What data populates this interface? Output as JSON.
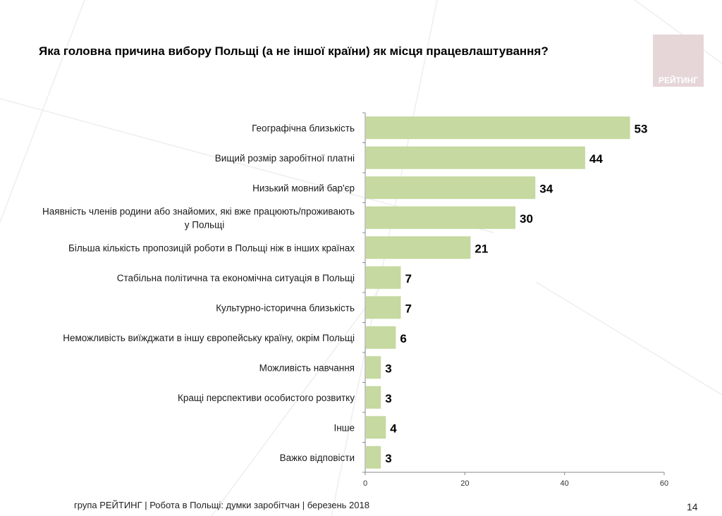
{
  "header": {
    "title": "Яка головна причина вибору Польщі (а не іншої країни) як місця працевлаштування?"
  },
  "logo": {
    "text": "РЕЙТИНГ"
  },
  "footer": {
    "text": "група РЕЙТИНГ  | Робота в Польщі: думки заробітчан  |  березень 2018",
    "page": "14"
  },
  "chart_data": {
    "type": "bar",
    "orientation": "horizontal",
    "categories": [
      [
        "Географічна близькість"
      ],
      [
        "Вищий розмір заробітної платні"
      ],
      [
        "Низький мовний бар'єр"
      ],
      [
        "Наявність членів родини або знайомих, які вже працюють/проживають",
        "у Польщі"
      ],
      [
        "Більша кількість пропозицій роботи в Польщі ніж в інших країнах"
      ],
      [
        "Стабільна політична та економічна ситуація в Польщі"
      ],
      [
        "Культурно-історична близькість"
      ],
      [
        "Неможливість виїжджати в іншу європейську країну, окрім Польщі"
      ],
      [
        "Можливість навчання"
      ],
      [
        "Кращі перспективи особистого розвитку"
      ],
      [
        "Інше"
      ],
      [
        "Важко відповісти"
      ]
    ],
    "values": [
      53,
      44,
      34,
      30,
      21,
      7,
      7,
      6,
      3,
      3,
      4,
      3
    ],
    "xlim": [
      0,
      60
    ],
    "xticks": [
      0,
      20,
      40,
      60
    ],
    "grid": false,
    "bar_color": "#c5d9a0"
  }
}
